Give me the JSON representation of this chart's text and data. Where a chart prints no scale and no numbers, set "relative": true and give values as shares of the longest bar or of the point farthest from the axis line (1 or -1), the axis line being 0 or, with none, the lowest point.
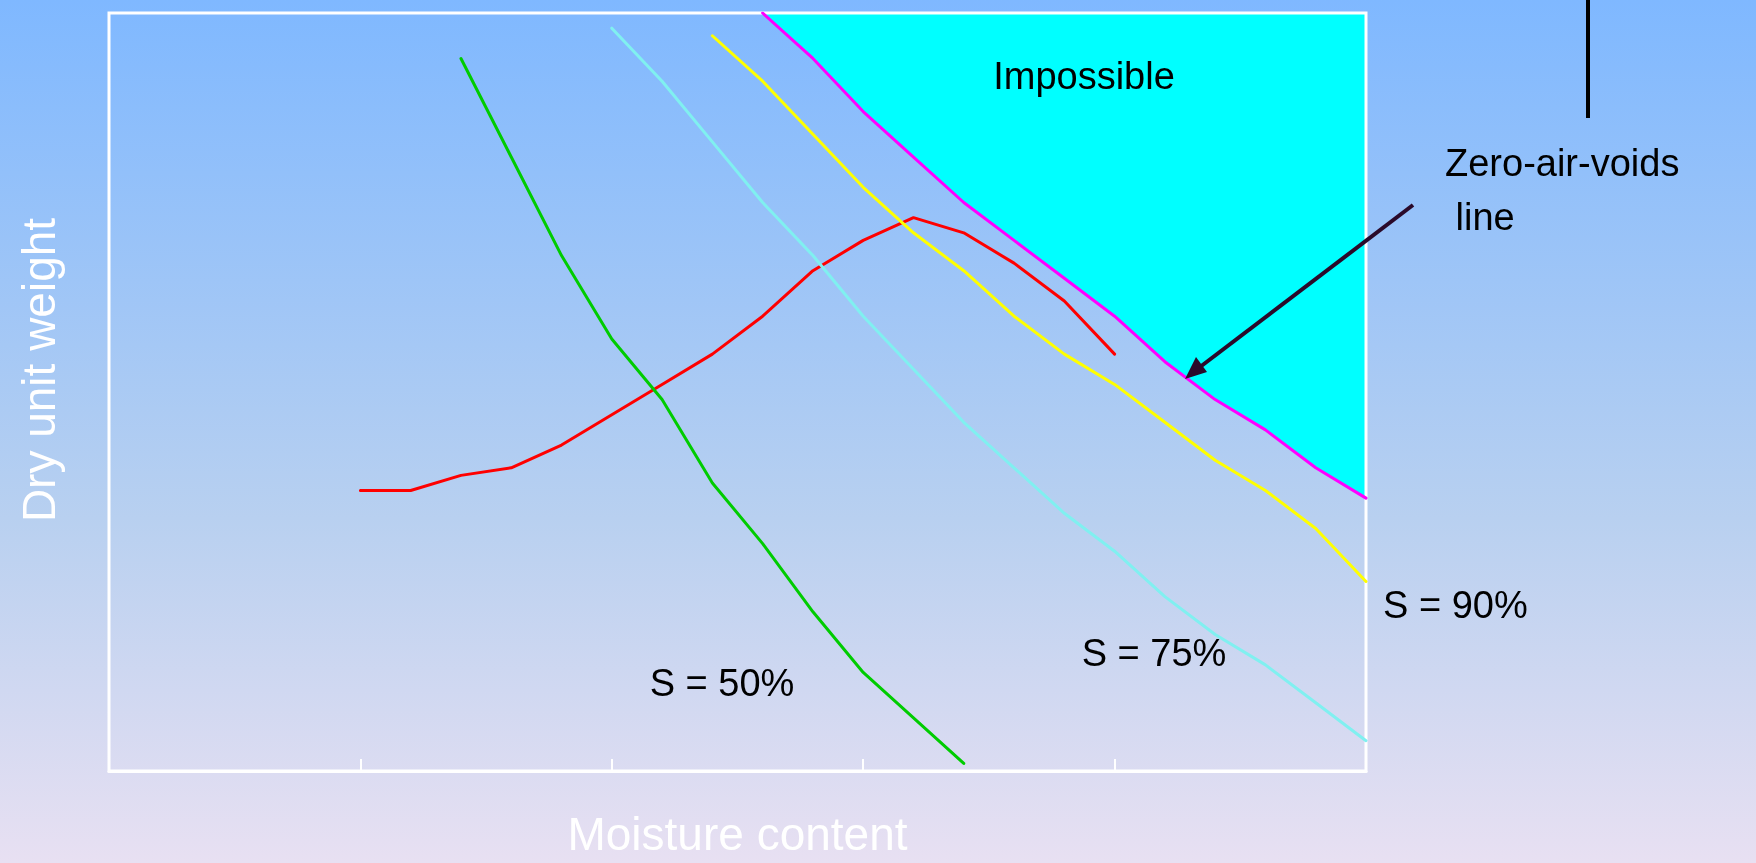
{
  "chart_data": {
    "type": "line",
    "xlabel": "Moisture content",
    "ylabel": "Dry unit weight",
    "relative": true,
    "marker": "none",
    "categories": [
      null,
      null,
      null,
      null,
      null,
      null,
      null,
      null,
      null,
      null,
      null,
      null,
      null,
      null,
      null,
      null,
      null,
      null,
      null,
      null,
      null,
      null,
      null,
      null,
      null,
      null
    ],
    "series": [
      {
        "color": "#ff0000",
        "values": [
          null,
          null,
          null,
          null,
          null,
          0.37,
          0.37,
          0.39,
          0.4,
          0.43,
          0.47,
          0.51,
          0.55,
          0.6,
          0.66,
          0.7,
          0.73,
          0.71,
          0.67,
          0.62,
          0.55,
          null,
          null,
          null,
          null,
          null
        ]
      },
      {
        "name": "S = 50%",
        "color": "#00cc00",
        "values": [
          null,
          null,
          null,
          null,
          null,
          null,
          null,
          0.94,
          0.81,
          0.68,
          0.57,
          0.49,
          0.38,
          0.3,
          0.21,
          0.13,
          0.07,
          0.01,
          null,
          null,
          null,
          null,
          null,
          null,
          null,
          null
        ]
      },
      {
        "name": "S = 75%",
        "color": "#80f0f0",
        "values": [
          null,
          null,
          null,
          null,
          null,
          null,
          null,
          null,
          null,
          null,
          0.98,
          0.91,
          0.83,
          0.75,
          0.68,
          0.6,
          0.53,
          0.46,
          0.4,
          0.34,
          0.29,
          0.23,
          0.18,
          0.14,
          0.09,
          0.04
        ]
      },
      {
        "name": "S = 90%",
        "color": "#ffff00",
        "values": [
          null,
          null,
          null,
          null,
          null,
          null,
          null,
          null,
          null,
          null,
          null,
          null,
          0.97,
          0.91,
          0.84,
          0.77,
          0.71,
          0.66,
          0.6,
          0.55,
          0.51,
          0.46,
          0.41,
          0.37,
          0.32,
          0.25
        ]
      },
      {
        "color": "#ff00ff",
        "values": [
          null,
          null,
          null,
          null,
          null,
          null,
          null,
          null,
          null,
          null,
          null,
          null,
          null,
          1,
          0.94,
          0.87,
          0.81,
          0.75,
          0.7,
          0.65,
          0.6,
          0.54,
          0.49,
          0.45,
          0.4,
          0.36
        ]
      }
    ],
    "annotations": [
      "Zero-air-voids line",
      "Impossible"
    ]
  }
}
